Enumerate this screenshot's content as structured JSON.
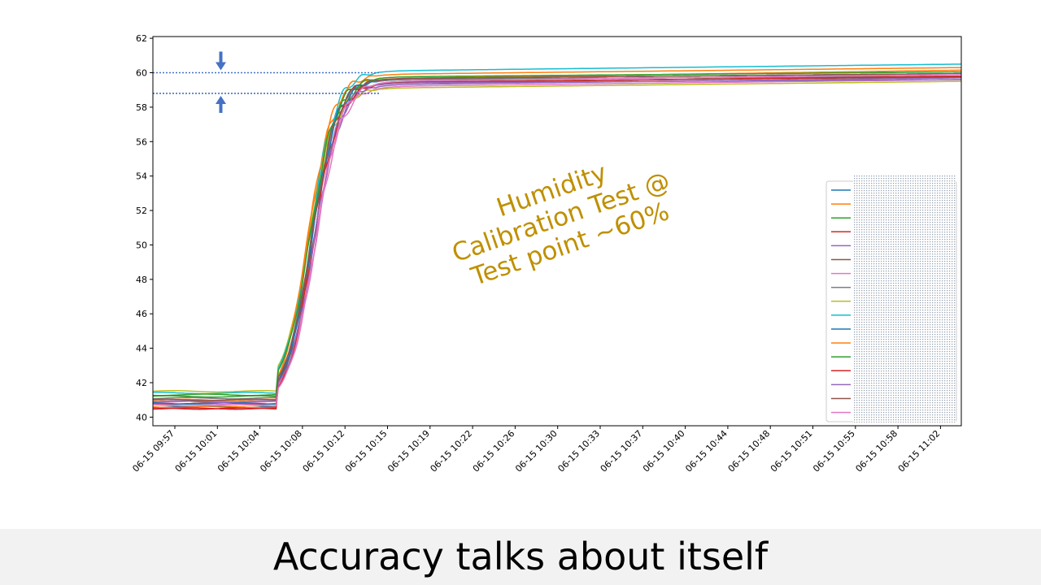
{
  "caption": "Accuracy talks about itself",
  "annotation": {
    "lines": [
      "Humidity",
      "Calibration  Test @",
      "Test point ~60%"
    ],
    "color": "#bf9000"
  },
  "colors": {
    "band_marker": "#4472c4",
    "legend_mask": "#9aa4b4"
  },
  "chart_data": {
    "type": "line",
    "ylim": [
      39.5,
      62.1
    ],
    "yticks": [
      40,
      42,
      44,
      46,
      48,
      50,
      52,
      54,
      56,
      58,
      60,
      62
    ],
    "xticks": [
      "06-15 09:57",
      "06-15 10:01",
      "06-15 10:04",
      "06-15 10:08",
      "06-15 10:12",
      "06-15 10:15",
      "06-15 10:19",
      "06-15 10:22",
      "06-15 10:26",
      "06-15 10:30",
      "06-15 10:33",
      "06-15 10:37",
      "06-15 10:40",
      "06-15 10:44",
      "06-15 10:48",
      "06-15 10:51",
      "06-15 10:55",
      "06-15 10:58",
      "06-15 11:02"
    ],
    "grid": false,
    "legend": "bottom-right",
    "reference_lines": [
      {
        "y": 60.0,
        "x_end_tick": 5
      },
      {
        "y": 58.8,
        "x_end_tick": 5
      }
    ],
    "palette": [
      "#1f77b4",
      "#ff7f0e",
      "#2ca02c",
      "#d62728",
      "#9467bd",
      "#8c564b",
      "#e377c2",
      "#7f7f7f",
      "#bcbd22",
      "#17becf"
    ],
    "series": [
      {
        "start": 40.6,
        "final": 59.7,
        "wmid": 10.6,
        "tol": 0.1
      },
      {
        "start": 41.0,
        "final": 59.9,
        "wmid": 10.3,
        "tol": 0.25
      },
      {
        "start": 41.2,
        "final": 59.6,
        "wmid": 10.4,
        "tol": 0.2
      },
      {
        "start": 40.5,
        "final": 59.8,
        "wmid": 10.5,
        "tol": 0.15
      },
      {
        "start": 40.7,
        "final": 59.5,
        "wmid": 10.8,
        "tol": 0.2
      },
      {
        "start": 40.8,
        "final": 59.6,
        "wmid": 10.7,
        "tol": 0.15
      },
      {
        "start": 40.9,
        "final": 59.4,
        "wmid": 10.9,
        "tol": 0.2
      },
      {
        "start": 41.1,
        "final": 59.7,
        "wmid": 10.6,
        "tol": 0.1
      },
      {
        "start": 41.5,
        "final": 59.3,
        "wmid": 10.4,
        "tol": 0.2
      },
      {
        "start": 41.4,
        "final": 60.3,
        "wmid": 10.5,
        "tol": 0.2
      },
      {
        "start": 40.8,
        "final": 59.8,
        "wmid": 10.6,
        "tol": 0.15
      },
      {
        "start": 40.6,
        "final": 60.1,
        "wmid": 10.3,
        "tol": 0.2
      },
      {
        "start": 41.3,
        "final": 59.9,
        "wmid": 10.5,
        "tol": 0.15
      },
      {
        "start": 40.5,
        "final": 59.6,
        "wmid": 10.7,
        "tol": 0.2
      },
      {
        "start": 40.9,
        "final": 59.5,
        "wmid": 10.8,
        "tol": 0.1
      },
      {
        "start": 41.0,
        "final": 59.8,
        "wmid": 10.6,
        "tol": 0.15
      },
      {
        "start": 40.7,
        "final": 59.7,
        "wmid": 10.9,
        "tol": 0.2
      }
    ]
  }
}
